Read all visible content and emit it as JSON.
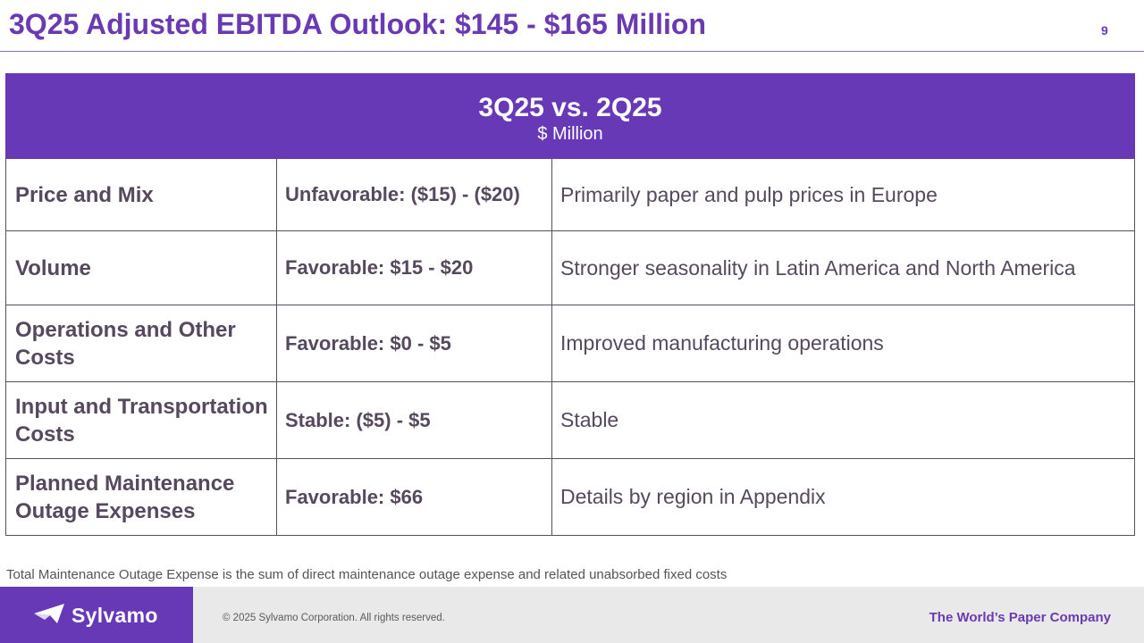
{
  "header": {
    "title": "3Q25 Adjusted EBITDA Outlook: $145 - $165 Million",
    "page_number": "9"
  },
  "table": {
    "heading": "3Q25 vs. 2Q25",
    "subheading": "$ Million",
    "rows": [
      {
        "driver": "Price and Mix",
        "impact": "Unfavorable: ($15) - ($20)",
        "comment": "Primarily paper and pulp prices in Europe"
      },
      {
        "driver": "Volume",
        "impact": "Favorable: $15 - $20",
        "comment": "Stronger seasonality in Latin America and North America"
      },
      {
        "driver": "Operations and Other Costs",
        "impact": "Favorable: $0 - $5",
        "comment": "Improved manufacturing operations"
      },
      {
        "driver": "Input and Transportation Costs",
        "impact": "Stable: ($5) - $5",
        "comment": "Stable"
      },
      {
        "driver": "Planned Maintenance Outage Expenses",
        "impact": "Favorable: $66",
        "comment": "Details by region in Appendix"
      }
    ]
  },
  "footnote": "Total Maintenance Outage Expense is the sum of direct maintenance outage expense and related unabsorbed fixed costs",
  "footer": {
    "brand": "Sylvamo",
    "brand_icon": "sylvamo-logo-icon",
    "copyright": "© 2025 Sylvamo Corporation. All rights reserved.",
    "tagline": "The World’s Paper Company"
  },
  "colors": {
    "accent": "#6739b7",
    "title_text": "#6a3ab2",
    "body_text": "#56495e",
    "footer_bg": "#e9e9e9"
  }
}
